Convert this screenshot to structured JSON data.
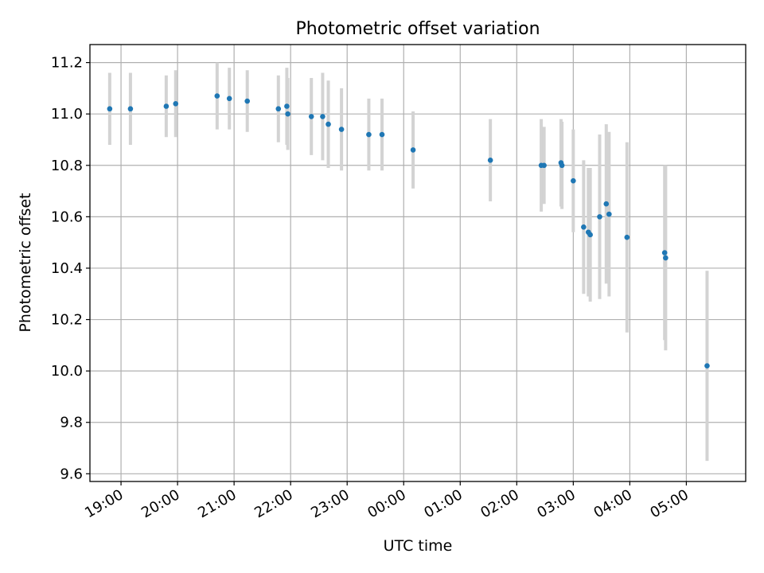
{
  "chart_data": {
    "type": "scatter",
    "title": "Photometric offset variation",
    "xlabel": "UTC time",
    "ylabel": "Photometric offset",
    "grid": true,
    "xlim": [
      -0.55,
      11.05
    ],
    "ylim": [
      9.57,
      11.27
    ],
    "x_tick_labels": [
      "19:00",
      "20:00",
      "21:00",
      "22:00",
      "23:00",
      "00:00",
      "01:00",
      "02:00",
      "03:00",
      "04:00",
      "05:00"
    ],
    "y_tick_values": [
      9.6,
      9.8,
      10.0,
      10.2,
      10.4,
      10.6,
      10.8,
      11.0,
      11.2
    ],
    "y_tick_labels": [
      "9.6",
      "9.8",
      "10.0",
      "10.2",
      "10.4",
      "10.6",
      "10.8",
      "11.0",
      "11.2"
    ],
    "colors": {
      "point": "#1f77b4",
      "errorbar": "#d3d3d3",
      "grid": "#b0b0b0"
    },
    "points": [
      {
        "x": "18:48",
        "y": 11.02,
        "err": 0.14
      },
      {
        "x": "19:10",
        "y": 11.02,
        "err": 0.14
      },
      {
        "x": "19:48",
        "y": 11.03,
        "err": 0.12
      },
      {
        "x": "19:58",
        "y": 11.04,
        "err": 0.13
      },
      {
        "x": "20:42",
        "y": 11.07,
        "err": 0.13
      },
      {
        "x": "20:55",
        "y": 11.06,
        "err": 0.12
      },
      {
        "x": "21:14",
        "y": 11.05,
        "err": 0.12
      },
      {
        "x": "21:47",
        "y": 11.02,
        "err": 0.13
      },
      {
        "x": "21:56",
        "y": 11.03,
        "err": 0.15
      },
      {
        "x": "21:57",
        "y": 11.0,
        "err": 0.14
      },
      {
        "x": "22:22",
        "y": 10.99,
        "err": 0.15
      },
      {
        "x": "22:34",
        "y": 10.99,
        "err": 0.17
      },
      {
        "x": "22:40",
        "y": 10.96,
        "err": 0.17
      },
      {
        "x": "22:54",
        "y": 10.94,
        "err": 0.16
      },
      {
        "x": "23:23",
        "y": 10.92,
        "err": 0.14
      },
      {
        "x": "23:37",
        "y": 10.92,
        "err": 0.14
      },
      {
        "x": "00:10",
        "y": 10.86,
        "err": 0.15
      },
      {
        "x": "01:32",
        "y": 10.82,
        "err": 0.16
      },
      {
        "x": "02:26",
        "y": 10.8,
        "err": 0.18
      },
      {
        "x": "02:29",
        "y": 10.8,
        "err": 0.15
      },
      {
        "x": "02:47",
        "y": 10.81,
        "err": 0.17
      },
      {
        "x": "02:48",
        "y": 10.8,
        "err": 0.17
      },
      {
        "x": "03:00",
        "y": 10.74,
        "err": 0.2
      },
      {
        "x": "03:11",
        "y": 10.56,
        "err": 0.26
      },
      {
        "x": "03:16",
        "y": 10.54,
        "err": 0.25
      },
      {
        "x": "03:18",
        "y": 10.53,
        "err": 0.26
      },
      {
        "x": "03:28",
        "y": 10.6,
        "err": 0.32
      },
      {
        "x": "03:35",
        "y": 10.65,
        "err": 0.31
      },
      {
        "x": "03:38",
        "y": 10.61,
        "err": 0.32
      },
      {
        "x": "03:57",
        "y": 10.52,
        "err": 0.37
      },
      {
        "x": "04:37",
        "y": 10.46,
        "err": 0.34
      },
      {
        "x": "04:38",
        "y": 10.44,
        "err": 0.36
      },
      {
        "x": "05:22",
        "y": 10.02,
        "err": 0.37
      }
    ]
  }
}
